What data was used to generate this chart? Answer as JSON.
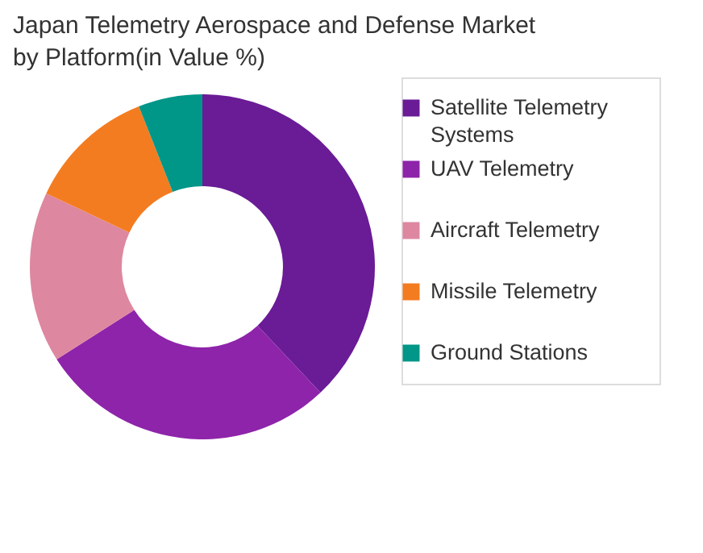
{
  "chart_data": {
    "type": "donut",
    "title": "Japan Telemetry Aerospace and Defense Market by Platform(in Value %)",
    "categories": [
      "Satellite Telemetry Systems",
      "UAV Telemetry",
      "Aircraft Telemetry",
      "Missile Telemetry",
      "Ground Stations"
    ],
    "values": [
      38,
      28,
      16,
      12,
      6
    ],
    "colors": [
      "#6a1b96",
      "#8e24aa",
      "#de87a0",
      "#f47c20",
      "#009688"
    ],
    "legend": "right"
  }
}
